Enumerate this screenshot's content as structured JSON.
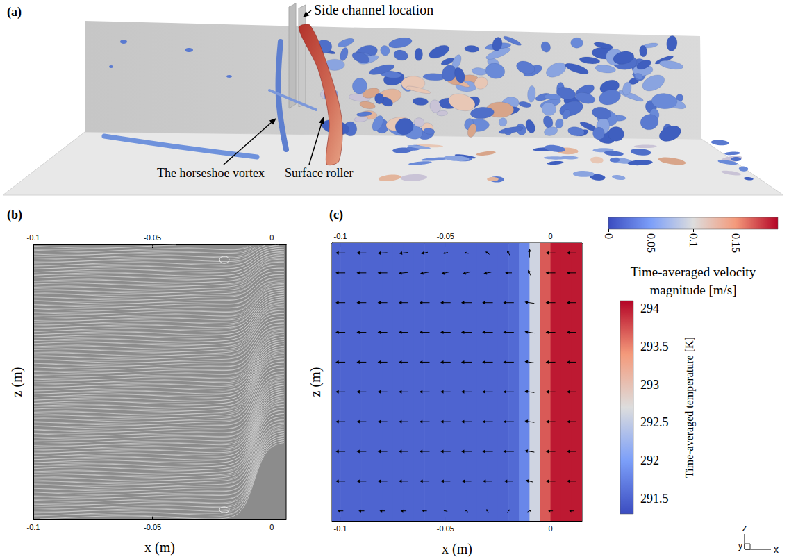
{
  "panel_a": {
    "label": "(a)",
    "annotations": {
      "side_channel": "Side channel location",
      "horseshoe_vortex": "The horseshoe vortex",
      "surface_roller": "Surface roller"
    }
  },
  "chart_data": [
    {
      "type": "streamlines",
      "label": "(b)",
      "x_label": "x (m)",
      "y_label": "z (m)",
      "xlim": [
        -0.1,
        0.006
      ],
      "xticks": [
        -0.1,
        -0.05,
        0
      ],
      "ylim": [
        0,
        0.14
      ],
      "tick_labels": "x"
    },
    {
      "type": "vector_field",
      "label": "(c)",
      "x_label": "x (m)",
      "y_label": "z (m)",
      "xlim": [
        -0.104,
        0.015
      ],
      "xticks": [
        -0.1,
        -0.05,
        0
      ],
      "ylim": [
        0,
        0.14
      ],
      "tick_labels": "x",
      "temperature": {
        "title": "Time-averaged temperature [K]",
        "x": [
          -0.1025,
          -0.0975,
          -0.0925,
          -0.0875,
          -0.0825,
          -0.0775,
          -0.0725,
          -0.0675,
          -0.0625,
          -0.0575,
          -0.0525,
          -0.0475,
          -0.0425,
          -0.0375,
          -0.0325,
          -0.0275,
          -0.0225,
          -0.0175,
          -0.0125,
          -0.0075,
          -0.0025,
          0.0025,
          0.0075,
          0.0125
        ],
        "values": [
          291.5,
          291.5,
          291.5,
          291.5,
          291.5,
          291.5,
          291.5,
          291.5,
          291.5,
          291.5,
          291.5,
          291.5,
          291.5,
          291.5,
          291.5,
          291.5,
          291.5,
          291.55,
          291.8,
          292.6,
          293.7,
          294,
          294,
          294
        ],
        "range": [
          291.3,
          294.1
        ],
        "ticks": [
          291.5,
          292,
          292.5,
          293,
          293.5,
          294
        ]
      },
      "velocity": {
        "title": "Time-averaged velocity magnitude [m/s]",
        "range": [
          0,
          0.2
        ],
        "ticks": [
          0,
          0.05,
          0.1,
          0.15
        ],
        "x": [
          -0.1,
          -0.09,
          -0.08,
          -0.07,
          -0.06,
          -0.05,
          -0.04,
          -0.03,
          -0.02,
          -0.01,
          0,
          0.01
        ],
        "z": [
          0.005,
          0.02,
          0.035,
          0.05,
          0.065,
          0.08,
          0.095,
          0.11,
          0.125,
          0.135
        ],
        "u": [
          [
            -0.012,
            -0.012,
            -0.012,
            -0.012,
            -0.01,
            -0.008,
            -0.006,
            -0.004,
            0.004,
            0.008,
            -0.01,
            -0.01
          ],
          [
            -0.02,
            -0.02,
            -0.02,
            -0.02,
            -0.02,
            -0.02,
            -0.02,
            -0.02,
            -0.018,
            -0.016,
            -0.02,
            -0.02
          ],
          [
            -0.02,
            -0.02,
            -0.02,
            -0.02,
            -0.021,
            -0.021,
            -0.022,
            -0.022,
            -0.022,
            -0.02,
            -0.02,
            -0.02
          ],
          [
            -0.02,
            -0.02,
            -0.02,
            -0.02,
            -0.021,
            -0.021,
            -0.022,
            -0.022,
            -0.022,
            -0.02,
            -0.02,
            -0.02
          ],
          [
            -0.02,
            -0.02,
            -0.02,
            -0.02,
            -0.021,
            -0.021,
            -0.022,
            -0.022,
            -0.022,
            -0.02,
            -0.02,
            -0.02
          ],
          [
            -0.02,
            -0.02,
            -0.02,
            -0.02,
            -0.021,
            -0.021,
            -0.022,
            -0.022,
            -0.022,
            -0.02,
            -0.02,
            -0.02
          ],
          [
            -0.02,
            -0.02,
            -0.02,
            -0.02,
            -0.021,
            -0.021,
            -0.022,
            -0.022,
            -0.022,
            -0.02,
            -0.02,
            -0.02
          ],
          [
            -0.02,
            -0.02,
            -0.02,
            -0.02,
            -0.021,
            -0.021,
            -0.022,
            -0.022,
            -0.022,
            -0.02,
            -0.02,
            -0.02
          ],
          [
            -0.02,
            -0.02,
            -0.02,
            -0.02,
            -0.018,
            -0.017,
            -0.016,
            -0.016,
            -0.014,
            -0.006,
            -0.02,
            -0.02
          ],
          [
            -0.02,
            -0.02,
            -0.02,
            -0.018,
            -0.014,
            -0.01,
            -0.008,
            -0.008,
            -0.006,
            0,
            -0.02,
            -0.02
          ]
        ],
        "w": [
          [
            0,
            0,
            0,
            0,
            0,
            0.002,
            0.004,
            0.008,
            0.006,
            0.004,
            0,
            0
          ],
          [
            0,
            0,
            0,
            0,
            0,
            0,
            0,
            0,
            0,
            0.004,
            0,
            0
          ],
          [
            0,
            0,
            0,
            0,
            0,
            0,
            0,
            0,
            0,
            0.003,
            0,
            0
          ],
          [
            0,
            0,
            0,
            0,
            0,
            0,
            0,
            0,
            0,
            0.003,
            0,
            0
          ],
          [
            0,
            0,
            0,
            0,
            0,
            0,
            0,
            0,
            0,
            0.003,
            0,
            0
          ],
          [
            0,
            0,
            0,
            0,
            0,
            0,
            0,
            0,
            0,
            0.003,
            0,
            0
          ],
          [
            0,
            0,
            0,
            0,
            0,
            0,
            0,
            0,
            0,
            0.003,
            0,
            0
          ],
          [
            0,
            0,
            0,
            0,
            0,
            0,
            0,
            0,
            0,
            0.003,
            0,
            0
          ],
          [
            0,
            0,
            0,
            -0.002,
            -0.003,
            -0.004,
            -0.004,
            -0.003,
            0,
            0.012,
            0,
            0
          ],
          [
            0,
            0,
            -0.001,
            -0.002,
            -0.003,
            -0.002,
            0.002,
            0.006,
            0.01,
            0.018,
            0,
            0
          ]
        ]
      },
      "axes_triad": [
        "z",
        "y",
        "x"
      ]
    }
  ]
}
